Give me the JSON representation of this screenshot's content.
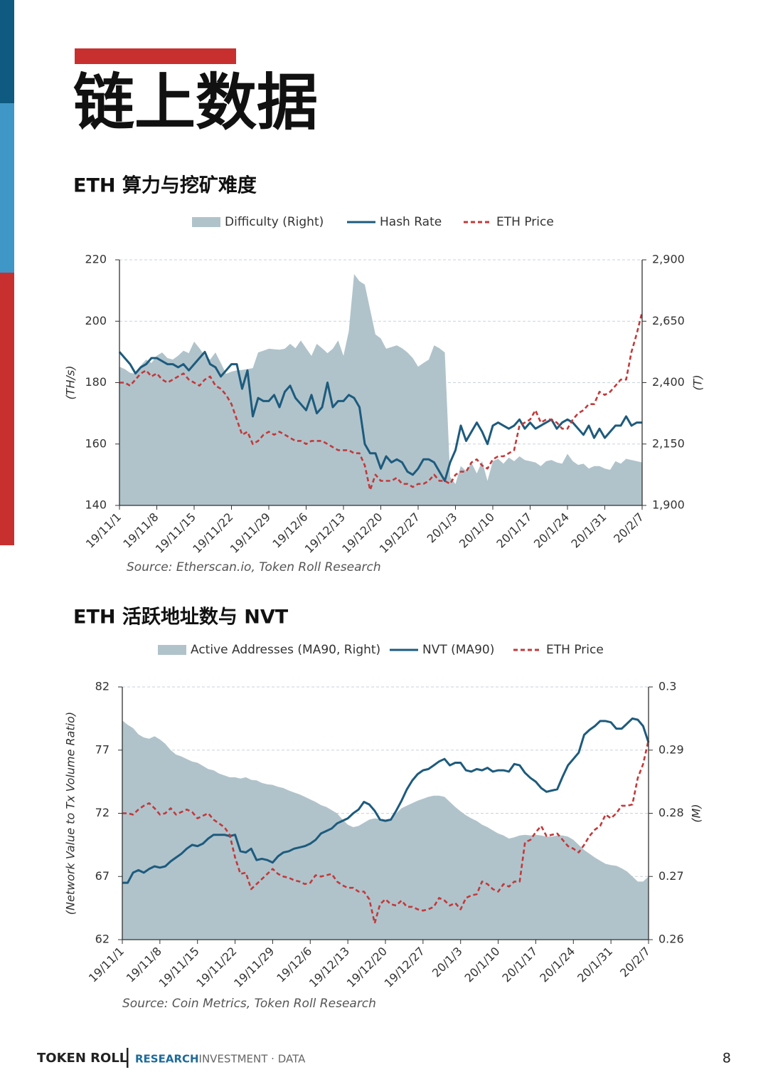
{
  "header": {
    "title": "链上数据"
  },
  "chart_data": [
    {
      "type": "line",
      "title": "ETH 算力与挖矿难度",
      "source": "Source: Etherscan.io, Token Roll Research",
      "ylabel": "(TH/s)",
      "y2label": "(T)",
      "categories": [
        "19/11/1",
        null,
        null,
        null,
        null,
        null,
        null,
        "19/11/8",
        null,
        null,
        null,
        null,
        null,
        null,
        "19/11/15",
        null,
        null,
        null,
        null,
        null,
        null,
        "19/11/22",
        null,
        null,
        null,
        null,
        null,
        null,
        "19/11/29",
        null,
        null,
        null,
        null,
        null,
        null,
        "19/12/6",
        null,
        null,
        null,
        null,
        null,
        null,
        "19/12/13",
        null,
        null,
        null,
        null,
        null,
        null,
        "19/12/20",
        null,
        null,
        null,
        null,
        null,
        null,
        "19/12/27",
        null,
        null,
        null,
        null,
        null,
        null,
        "20/1/3",
        null,
        null,
        null,
        null,
        null,
        null,
        "20/1/10",
        null,
        null,
        null,
        null,
        null,
        null,
        "20/1/17",
        null,
        null,
        null,
        null,
        null,
        null,
        "20/1/24",
        null,
        null,
        null,
        null,
        null,
        null,
        "20/1/31",
        null,
        null,
        null,
        null,
        null,
        null,
        "20/2/7"
      ],
      "ylim": [
        140,
        220
      ],
      "yticks": [
        140,
        160,
        180,
        200,
        220
      ],
      "y2lim": [
        1900,
        2900
      ],
      "y2ticks": [
        {
          "value": 1900,
          "label": "1,900"
        },
        {
          "value": 2150,
          "label": "2,150"
        },
        {
          "value": 2400,
          "label": "2,400"
        },
        {
          "value": 2650,
          "label": "2,650"
        },
        {
          "value": 2900,
          "label": "2,900"
        }
      ],
      "grid": true,
      "series": [
        {
          "name": "Difficulty (Right)",
          "style": "area",
          "axis": "y2",
          "color": "#b0c3cb",
          "values": [
            2465,
            2455,
            2440,
            2436,
            2470,
            2494,
            2480,
            2510,
            2523,
            2500,
            2494,
            2510,
            2530,
            2520,
            2567,
            2540,
            2510,
            2494,
            2523,
            2480,
            2436,
            2445,
            2450,
            2452,
            2455,
            2459,
            2523,
            2530,
            2538,
            2536,
            2534,
            2538,
            2558,
            2540,
            2572,
            2540,
            2509,
            2558,
            2540,
            2520,
            2538,
            2572,
            2509,
            2610,
            2842,
            2813,
            2799,
            2697,
            2596,
            2580,
            2538,
            2545,
            2552,
            2540,
            2523,
            2500,
            2465,
            2480,
            2494,
            2552,
            2540,
            2523,
            2016,
            1987,
            2060,
            2040,
            2074,
            2030,
            2080,
            2000,
            2080,
            2090,
            2070,
            2095,
            2080,
            2100,
            2085,
            2080,
            2075,
            2060,
            2080,
            2085,
            2075,
            2070,
            2110,
            2080,
            2065,
            2070,
            2050,
            2060,
            2060,
            2050,
            2045,
            2080,
            2070,
            2090,
            2085,
            2080,
            2075
          ]
        },
        {
          "name": "Hash Rate",
          "style": "solid",
          "color": "#1d5b7d",
          "values": [
            190,
            188,
            186,
            183,
            185,
            186,
            188,
            188,
            187,
            186,
            186,
            185,
            186,
            184,
            186,
            188,
            190,
            186,
            185,
            182,
            184,
            186,
            186,
            178,
            184,
            169,
            175,
            174,
            174,
            176,
            172,
            177,
            179,
            175,
            173,
            171,
            176,
            170,
            172,
            180,
            172,
            174,
            174,
            176,
            175,
            172,
            160,
            157,
            157,
            152,
            156,
            154,
            155,
            154,
            151,
            150,
            152,
            155,
            155,
            154,
            151,
            148,
            154,
            158,
            166,
            161,
            164,
            167,
            164,
            160,
            166,
            167,
            166,
            165,
            166,
            168,
            165,
            167,
            165,
            166,
            167,
            168,
            165,
            167,
            168,
            167,
            165,
            163,
            166,
            162,
            165,
            162,
            164,
            166,
            166,
            169,
            166,
            167,
            167
          ]
        },
        {
          "name": "ETH Price",
          "style": "dashed",
          "color": "#c2393a",
          "values": [
            180,
            180,
            179,
            181,
            183,
            184,
            182,
            183,
            181,
            180,
            181,
            182,
            183,
            181,
            180,
            179,
            181,
            182,
            179,
            178,
            176,
            173,
            168,
            163,
            164,
            160,
            161,
            163,
            164,
            163,
            164,
            163,
            162,
            161,
            161,
            160,
            161,
            161,
            161,
            160,
            159,
            158,
            158,
            158,
            157,
            157,
            153,
            145,
            150,
            148,
            148,
            148,
            149,
            147,
            147,
            146,
            147,
            147,
            148,
            150,
            148,
            148,
            147,
            150,
            151,
            151,
            154,
            155,
            153,
            152,
            155,
            156,
            156,
            157,
            158,
            166,
            167,
            168,
            171,
            167,
            168,
            168,
            167,
            165,
            165,
            168,
            170,
            171,
            173,
            173,
            177,
            176,
            177,
            179,
            181,
            181,
            190,
            196,
            203
          ]
        }
      ]
    },
    {
      "type": "line",
      "title": "ETH 活跃地址数与 NVT",
      "source": "Source: Coin Metrics, Token Roll Research",
      "ylabel": "(Network Value to Tx Volume Ratio)",
      "y2label": "(M)",
      "categories": [
        "19/11/1",
        null,
        null,
        null,
        null,
        null,
        null,
        "19/11/8",
        null,
        null,
        null,
        null,
        null,
        null,
        "19/11/15",
        null,
        null,
        null,
        null,
        null,
        null,
        "19/11/22",
        null,
        null,
        null,
        null,
        null,
        null,
        "19/11/29",
        null,
        null,
        null,
        null,
        null,
        null,
        "19/12/6",
        null,
        null,
        null,
        null,
        null,
        null,
        "19/12/13",
        null,
        null,
        null,
        null,
        null,
        null,
        "19/12/20",
        null,
        null,
        null,
        null,
        null,
        null,
        "19/12/27",
        null,
        null,
        null,
        null,
        null,
        null,
        "20/1/3",
        null,
        null,
        null,
        null,
        null,
        null,
        "20/1/10",
        null,
        null,
        null,
        null,
        null,
        null,
        "20/1/17",
        null,
        null,
        null,
        null,
        null,
        null,
        "20/1/24",
        null,
        null,
        null,
        null,
        null,
        null,
        "20/1/31",
        null,
        null,
        null,
        null,
        null,
        null,
        "20/2/7"
      ],
      "ylim": [
        62,
        82
      ],
      "yticks": [
        62,
        67,
        72,
        77,
        82
      ],
      "y2lim": [
        0.26,
        0.3
      ],
      "y2ticks": [
        0.26,
        0.27,
        0.28,
        0.29,
        0.3
      ],
      "grid": true,
      "series": [
        {
          "name": "Active Addresses (MA90, Right)",
          "style": "area",
          "axis": "y2",
          "color": "#b0c3cb",
          "values": [
            0.2947,
            0.294,
            0.2935,
            0.2925,
            0.292,
            0.2918,
            0.2922,
            0.2917,
            0.291,
            0.29,
            0.2893,
            0.289,
            0.2886,
            0.2882,
            0.288,
            0.2875,
            0.287,
            0.2868,
            0.2863,
            0.286,
            0.2857,
            0.2857,
            0.2855,
            0.2857,
            0.2853,
            0.2852,
            0.2848,
            0.2846,
            0.2845,
            0.2842,
            0.284,
            0.2836,
            0.2833,
            0.283,
            0.2826,
            0.2822,
            0.2818,
            0.2813,
            0.281,
            0.2805,
            0.28,
            0.279,
            0.2782,
            0.2778,
            0.278,
            0.2785,
            0.279,
            0.2792,
            0.2791,
            0.279,
            0.2792,
            0.28,
            0.2808,
            0.2812,
            0.2816,
            0.282,
            0.2823,
            0.2826,
            0.2828,
            0.2828,
            0.2826,
            0.2818,
            0.281,
            0.2803,
            0.2797,
            0.2792,
            0.2788,
            0.2782,
            0.2778,
            0.2773,
            0.2768,
            0.2765,
            0.276,
            0.2762,
            0.2765,
            0.2766,
            0.2765,
            0.2766,
            0.2765,
            0.2763,
            0.2763,
            0.2765,
            0.2765,
            0.2763,
            0.2758,
            0.275,
            0.2742,
            0.2736,
            0.273,
            0.2725,
            0.272,
            0.2718,
            0.2717,
            0.2713,
            0.2708,
            0.27,
            0.2692,
            0.2692,
            0.27
          ]
        },
        {
          "name": "NVT (MA90)",
          "style": "solid",
          "color": "#1d5b7d",
          "values": [
            66.5,
            66.5,
            67.3,
            67.5,
            67.3,
            67.6,
            67.8,
            67.7,
            67.8,
            68.2,
            68.5,
            68.8,
            69.2,
            69.5,
            69.4,
            69.6,
            70,
            70.3,
            70.3,
            70.3,
            70.2,
            70.3,
            69,
            68.9,
            69.2,
            68.3,
            68.4,
            68.3,
            68.1,
            68.6,
            68.9,
            69,
            69.2,
            69.3,
            69.4,
            69.6,
            69.9,
            70.4,
            70.6,
            70.8,
            71.2,
            71.4,
            71.6,
            72,
            72.3,
            72.9,
            72.7,
            72.2,
            71.5,
            71.4,
            71.5,
            72.2,
            73,
            73.9,
            74.6,
            75.1,
            75.4,
            75.5,
            75.8,
            76.1,
            76.3,
            75.8,
            76,
            76,
            75.4,
            75.3,
            75.5,
            75.4,
            75.6,
            75.3,
            75.4,
            75.4,
            75.3,
            75.9,
            75.8,
            75.2,
            74.8,
            74.5,
            74,
            73.7,
            73.8,
            73.9,
            74.9,
            75.8,
            76.3,
            76.8,
            78.2,
            78.6,
            78.9,
            79.3,
            79.3,
            79.2,
            78.7,
            78.7,
            79.1,
            79.5,
            79.4,
            78.9,
            77.6
          ]
        },
        {
          "name": "ETH Price",
          "style": "dashed",
          "color": "#c2393a",
          "values": [
            72,
            72,
            71.9,
            72.3,
            72.6,
            72.8,
            72.4,
            71.9,
            72,
            72.4,
            71.9,
            72.1,
            72.3,
            72.1,
            71.6,
            71.8,
            72,
            71.5,
            71.2,
            70.9,
            70.3,
            68.5,
            67.2,
            67.3,
            66,
            66.4,
            66.8,
            67.2,
            67.6,
            67.2,
            67,
            66.9,
            66.7,
            66.6,
            66.4,
            66.5,
            67.1,
            67,
            67.1,
            67.2,
            66.6,
            66.3,
            66.1,
            66.1,
            65.8,
            65.8,
            65.2,
            63.3,
            64.8,
            65.2,
            64.8,
            64.7,
            65.1,
            64.6,
            64.6,
            64.4,
            64.3,
            64.4,
            64.6,
            65.3,
            65.1,
            64.7,
            64.9,
            64.4,
            65.3,
            65.5,
            65.6,
            66.6,
            66.4,
            66,
            65.8,
            66.4,
            66.2,
            66.6,
            66.6,
            69.7,
            69.9,
            70.5,
            71,
            70.2,
            70.3,
            70.4,
            69.9,
            69.4,
            69.2,
            68.9,
            69.5,
            70.2,
            70.7,
            71,
            71.9,
            71.6,
            72,
            72.6,
            72.6,
            72.7,
            74.8,
            75.9,
            77.8
          ]
        }
      ]
    }
  ],
  "footer": {
    "brand": "TOKEN ROLL",
    "research": "RESEARCH",
    "tagline": "· INVESTMENT · DATA",
    "page": 8
  }
}
